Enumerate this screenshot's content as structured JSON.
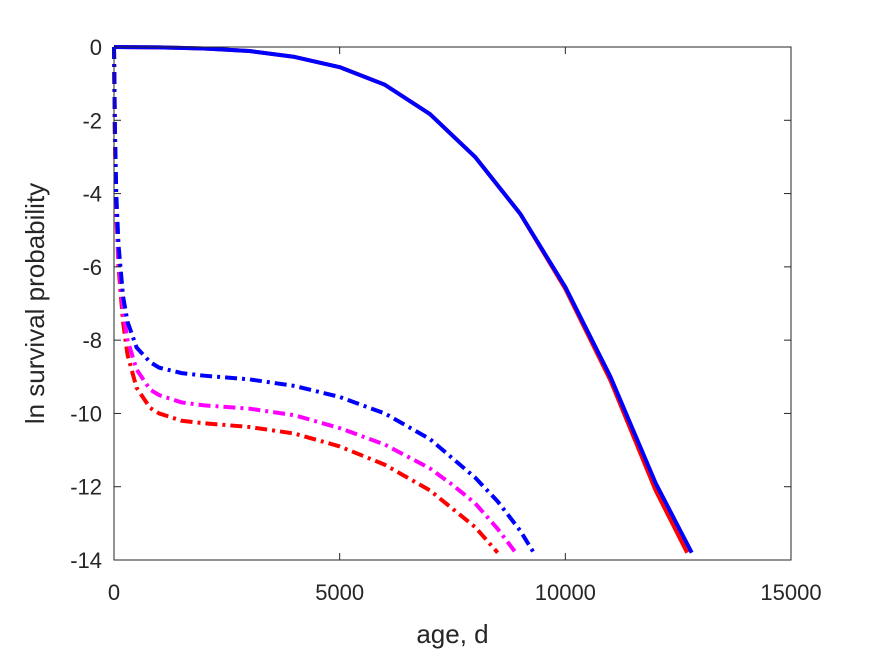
{
  "chart_data": {
    "type": "line",
    "xlabel": "age, d",
    "ylabel": "ln survival probability",
    "xlim": [
      0,
      15000
    ],
    "ylim": [
      -14,
      0
    ],
    "xticks": [
      0,
      5000,
      10000,
      15000
    ],
    "yticks": [
      0,
      -2,
      -4,
      -6,
      -8,
      -10,
      -12,
      -14
    ],
    "xtick_labels": [
      "0",
      "5000",
      "10000",
      "15000"
    ],
    "ytick_labels": [
      "0",
      "-2",
      "-4",
      "-6",
      "-8",
      "-10",
      "-12",
      "-14"
    ],
    "grid": false,
    "box": true,
    "series": [
      {
        "color": "#ff0000",
        "style": "solid",
        "x": [
          0,
          1000,
          2000,
          3000,
          4000,
          5000,
          6000,
          7000,
          8000,
          9000,
          10000,
          11000,
          12000,
          12700
        ],
        "y": [
          0,
          -0.01,
          -0.04,
          -0.11,
          -0.27,
          -0.55,
          -1.03,
          -1.83,
          -3.0,
          -4.55,
          -6.6,
          -9.1,
          -12.1,
          -13.8
        ]
      },
      {
        "color": "#0000ff",
        "style": "solid",
        "x": [
          0,
          1000,
          2000,
          3000,
          4000,
          5000,
          6000,
          7000,
          8000,
          9000,
          10000,
          11000,
          12000,
          12800
        ],
        "y": [
          0,
          -0.01,
          -0.04,
          -0.11,
          -0.27,
          -0.55,
          -1.03,
          -1.83,
          -3.0,
          -4.55,
          -6.55,
          -9.0,
          -11.9,
          -13.8
        ]
      },
      {
        "color": "#ff0000",
        "style": "dashdot",
        "x": [
          0,
          20,
          50,
          100,
          200,
          300,
          500,
          800,
          1000,
          1500,
          2000,
          3000,
          4000,
          5000,
          6000,
          7000,
          7500,
          8000,
          8500
        ],
        "y": [
          0,
          -2.5,
          -4.5,
          -6.0,
          -7.5,
          -8.4,
          -9.3,
          -9.85,
          -10.0,
          -10.2,
          -10.27,
          -10.37,
          -10.55,
          -10.9,
          -11.4,
          -12.1,
          -12.6,
          -13.1,
          -13.8
        ]
      },
      {
        "color": "#ff00ff",
        "style": "dashdot",
        "x": [
          0,
          20,
          50,
          100,
          200,
          300,
          500,
          800,
          1000,
          1500,
          2000,
          3000,
          4000,
          5000,
          6000,
          7000,
          7500,
          8000,
          8500,
          8900
        ],
        "y": [
          0,
          -2.4,
          -4.3,
          -5.8,
          -7.2,
          -8.0,
          -8.8,
          -9.35,
          -9.5,
          -9.7,
          -9.78,
          -9.87,
          -10.05,
          -10.4,
          -10.85,
          -11.5,
          -11.95,
          -12.45,
          -13.15,
          -13.8
        ]
      },
      {
        "color": "#0000ff",
        "style": "dashdot",
        "x": [
          0,
          20,
          50,
          100,
          200,
          300,
          500,
          800,
          1000,
          1500,
          2000,
          3000,
          4000,
          5000,
          6000,
          7000,
          8000,
          8500,
          9000,
          9300
        ],
        "y": [
          0,
          -2.2,
          -4.0,
          -5.4,
          -6.8,
          -7.5,
          -8.2,
          -8.6,
          -8.75,
          -8.9,
          -8.97,
          -9.07,
          -9.25,
          -9.55,
          -10.0,
          -10.7,
          -11.75,
          -12.4,
          -13.2,
          -13.8
        ]
      }
    ]
  }
}
